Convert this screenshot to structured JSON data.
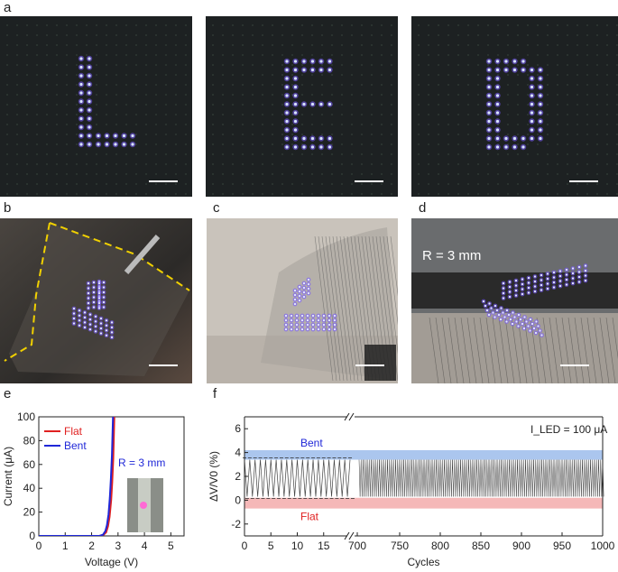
{
  "panels": {
    "a": {
      "label": "a"
    },
    "b": {
      "label": "b"
    },
    "c": {
      "label": "c"
    },
    "d": {
      "label": "d",
      "annotation": "R = 3 mm"
    },
    "e": {
      "label": "e"
    },
    "f": {
      "label": "f"
    }
  },
  "colors": {
    "flat": "#e02020",
    "bent": "#1f27d8",
    "led": "#7a5cff"
  },
  "icons": {
    "led_letters": [
      "L",
      "E",
      "D"
    ]
  },
  "chart_data": [
    {
      "type": "line",
      "panel": "e",
      "xlabel": "Voltage (V)",
      "ylabel": "Current (μA)",
      "xlim": [
        0,
        5.5
      ],
      "ylim": [
        0,
        100
      ],
      "xticks": [
        "0",
        "1",
        "2",
        "3",
        "4",
        "5"
      ],
      "yticks": [
        "0",
        "20",
        "40",
        "60",
        "80",
        "100"
      ],
      "legend_position": "top-left",
      "annotation": "R = 3 mm",
      "series": [
        {
          "name": "Flat",
          "color": "#e02020",
          "x": [
            0,
            2.3,
            2.45,
            2.55,
            2.62,
            2.68,
            2.74,
            2.78,
            2.82,
            2.86
          ],
          "y": [
            0,
            0,
            1,
            3,
            8,
            16,
            30,
            45,
            65,
            100
          ]
        },
        {
          "name": "Bent",
          "color": "#1f27d8",
          "x": [
            0,
            2.3,
            2.43,
            2.52,
            2.58,
            2.64,
            2.69,
            2.73,
            2.77,
            2.81
          ],
          "y": [
            0,
            0,
            1,
            4,
            9,
            18,
            32,
            48,
            68,
            100
          ]
        }
      ]
    },
    {
      "type": "line",
      "panel": "f",
      "xlabel": "Cycles",
      "ylabel": "ΔV/V0 (%)",
      "ylim": [
        -3,
        7
      ],
      "yticks": [
        "-2",
        "0",
        "2",
        "4",
        "6"
      ],
      "xticks_left": [
        "0",
        "5",
        "10",
        "15",
        "700"
      ],
      "xticks_right": [
        "750",
        "800",
        "850",
        "900",
        "950",
        "1000"
      ],
      "x_break": true,
      "annotation": "I_LED = 100 μA",
      "bands": [
        {
          "label": "Bent",
          "y_range": [
            3.4,
            4.2
          ],
          "color": "#8fb3e8"
        },
        {
          "label": "Flat",
          "y_range": [
            -0.7,
            0.2
          ],
          "color": "#f2a0a0"
        }
      ],
      "levels": {
        "high": 3.4,
        "low": 0.3
      },
      "segment_left": {
        "x_range": [
          0,
          20
        ],
        "cycles": 20
      },
      "segment_right": {
        "x_range": [
          700,
          1000
        ]
      }
    }
  ]
}
